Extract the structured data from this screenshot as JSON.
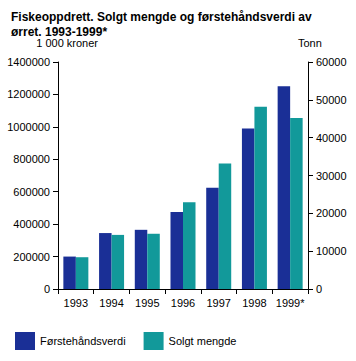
{
  "chart_data": {
    "type": "bar",
    "title": "Fiskeoppdrett. Solgt mengde og førstehåndsverdi av ørret. 1993-1999*",
    "categories": [
      "1993",
      "1994",
      "1995",
      "1996",
      "1997",
      "1998",
      "1999*"
    ],
    "series": [
      {
        "name": "Førstehåndsverdi",
        "color": "#1a2f96",
        "values": [
          200000,
          345000,
          365000,
          475000,
          625000,
          990000,
          1250000
        ]
      },
      {
        "name": "Solgt mengde",
        "color": "#12999a",
        "axis": "y2",
        "values": [
          8400,
          14300,
          14600,
          22900,
          33200,
          48200,
          45200
        ]
      }
    ],
    "y_label": "1 000 kroner",
    "y2_label": "Tonn",
    "ylim": [
      0,
      1400000
    ],
    "yticks": [
      0,
      200000,
      400000,
      600000,
      800000,
      1000000,
      1200000,
      1400000
    ],
    "y2lim": [
      0,
      60000
    ],
    "y2ticks": [
      0,
      10000,
      20000,
      30000,
      40000,
      50000,
      60000
    ],
    "grid": false,
    "legend": "bottom"
  }
}
